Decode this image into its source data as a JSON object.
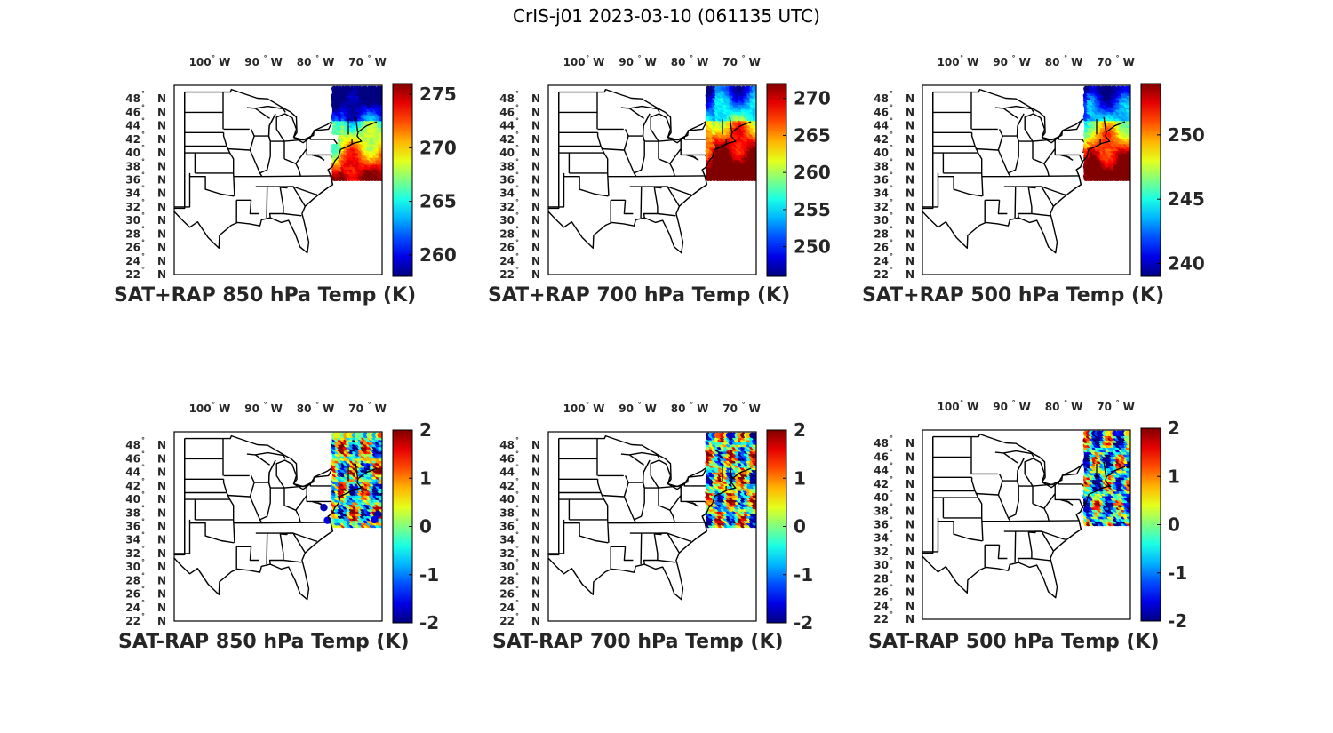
{
  "figure": {
    "title": "CrIS-j01 2023-03-10 (061135 UTC)"
  },
  "axes": {
    "lon_ticks": [
      {
        "deg": "100",
        "suffix": "W",
        "lon": -100
      },
      {
        "deg": "90",
        "suffix": "W",
        "lon": -90
      },
      {
        "deg": "80",
        "suffix": "W",
        "lon": -80
      },
      {
        "deg": "70",
        "suffix": "W",
        "lon": -70
      }
    ],
    "lat_ticks": [
      {
        "deg": "48",
        "suffix": "N",
        "lat": 48
      },
      {
        "deg": "46",
        "suffix": "N",
        "lat": 46
      },
      {
        "deg": "44",
        "suffix": "N",
        "lat": 44
      },
      {
        "deg": "42",
        "suffix": "N",
        "lat": 42
      },
      {
        "deg": "40",
        "suffix": "N",
        "lat": 40
      },
      {
        "deg": "38",
        "suffix": "N",
        "lat": 38
      },
      {
        "deg": "36",
        "suffix": "N",
        "lat": 36
      },
      {
        "deg": "34",
        "suffix": "N",
        "lat": 34
      },
      {
        "deg": "32",
        "suffix": "N",
        "lat": 32
      },
      {
        "deg": "30",
        "suffix": "N",
        "lat": 30
      },
      {
        "deg": "28",
        "suffix": "N",
        "lat": 28
      },
      {
        "deg": "26",
        "suffix": "N",
        "lat": 26
      },
      {
        "deg": "24",
        "suffix": "N",
        "lat": 24
      },
      {
        "deg": "22",
        "suffix": "N",
        "lat": 22
      }
    ],
    "lon_range": [
      -106,
      -66
    ],
    "lat_range": [
      22,
      50
    ]
  },
  "colormap": "jet",
  "panels": [
    {
      "id": "p1",
      "title": "SAT+RAP 850 hPa Temp (K)",
      "kind": "abs",
      "clim": [
        258,
        276
      ],
      "cb_ticks": [
        275,
        270,
        265,
        260
      ]
    },
    {
      "id": "p2",
      "title": "SAT+RAP 700 hPa Temp (K)",
      "kind": "abs",
      "clim": [
        246,
        272
      ],
      "cb_ticks": [
        270,
        265,
        260,
        255,
        250
      ]
    },
    {
      "id": "p3",
      "title": "SAT+RAP 500 hPa Temp (K)",
      "kind": "abs",
      "clim": [
        239,
        254
      ],
      "cb_ticks": [
        250,
        245,
        240
      ]
    },
    {
      "id": "p4",
      "title": "SAT-RAP 850 hPa Temp (K)",
      "kind": "diff",
      "clim": [
        -2,
        2
      ],
      "cb_ticks": [
        2,
        1,
        0,
        -1,
        -2
      ]
    },
    {
      "id": "p5",
      "title": "SAT-RAP 700 hPa Temp (K)",
      "kind": "diff",
      "clim": [
        -2,
        2
      ],
      "cb_ticks": [
        2,
        1,
        0,
        -1,
        -2
      ]
    },
    {
      "id": "p6",
      "title": "SAT-RAP 500 hPa Temp (K)",
      "kind": "diff",
      "clim": [
        -2,
        2
      ],
      "cb_ticks": [
        2,
        1,
        0,
        -1,
        -2
      ]
    }
  ]
}
